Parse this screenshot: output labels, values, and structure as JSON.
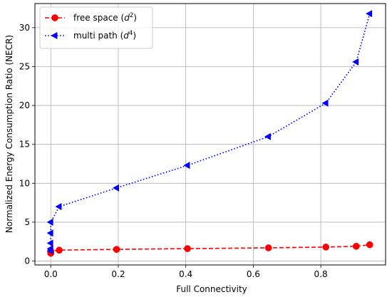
{
  "chart_data": {
    "type": "line",
    "title": "",
    "xlabel": "Full Connectivity",
    "ylabel": "Normalized Energy Consumption Ratio (NECR)",
    "xlim": [
      -0.047,
      0.992
    ],
    "ylim": [
      -0.5,
      33.1
    ],
    "xticks": [
      0.0,
      0.2,
      0.4,
      0.6,
      0.8
    ],
    "xtick_labels": [
      "0.0",
      "0.2",
      "0.4",
      "0.6",
      "0.8"
    ],
    "yticks": [
      0,
      5,
      10,
      15,
      20,
      25,
      30
    ],
    "ytick_labels": [
      "0",
      "5",
      "10",
      "15",
      "20",
      "25",
      "30"
    ],
    "grid": true,
    "legend_position": "upper-left",
    "series": [
      {
        "name": "free space (d²)",
        "label_main": "free space (",
        "label_var": "d",
        "label_exp": "2",
        "label_end": ")",
        "color": "#ff0000",
        "linestyle": "dashed",
        "marker": "circle",
        "x": [
          0.0,
          0.0,
          0.0,
          0.0,
          0.025,
          0.195,
          0.405,
          0.645,
          0.815,
          0.905,
          0.945
        ],
        "y": [
          1.0,
          1.1,
          1.2,
          1.3,
          1.4,
          1.5,
          1.6,
          1.7,
          1.8,
          1.9,
          2.1
        ]
      },
      {
        "name": "multi path (d⁴)",
        "label_main": "multi path (",
        "label_var": "d",
        "label_exp": "4",
        "label_end": ")",
        "color": "#0000ff",
        "linestyle": "dotted",
        "marker": "triangle-left",
        "x": [
          0.0,
          0.0,
          0.0,
          0.0,
          0.0,
          0.025,
          0.195,
          0.405,
          0.645,
          0.815,
          0.905,
          0.945
        ],
        "y": [
          1.3,
          1.6,
          2.3,
          3.6,
          5.0,
          7.0,
          9.4,
          12.3,
          16.0,
          20.3,
          25.6,
          31.8
        ]
      }
    ]
  }
}
